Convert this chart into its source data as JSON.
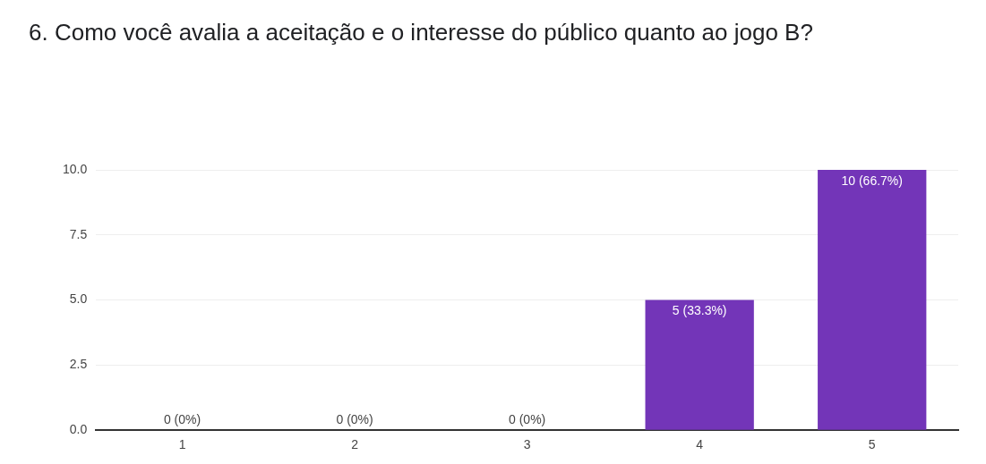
{
  "chart_data": {
    "type": "bar",
    "title": "6. Como você avalia a aceitação e o interesse do público quanto ao jogo B?",
    "categories": [
      "1",
      "2",
      "3",
      "4",
      "5"
    ],
    "values": [
      0,
      0,
      0,
      5,
      10
    ],
    "color": "#7335b8",
    "value_labels": [
      "0 (0%)",
      "0 (0%)",
      "0 (0%)",
      "5 (33.3%)",
      "10 (66.7%)"
    ],
    "ylim": [
      0,
      10
    ],
    "yticks": [
      {
        "value": 0,
        "label": "0.0"
      },
      {
        "value": 2.5,
        "label": "2.5"
      },
      {
        "value": 5,
        "label": "5.0"
      },
      {
        "value": 7.5,
        "label": "7.5"
      },
      {
        "value": 10,
        "label": "10.0"
      }
    ],
    "grid": "y"
  }
}
